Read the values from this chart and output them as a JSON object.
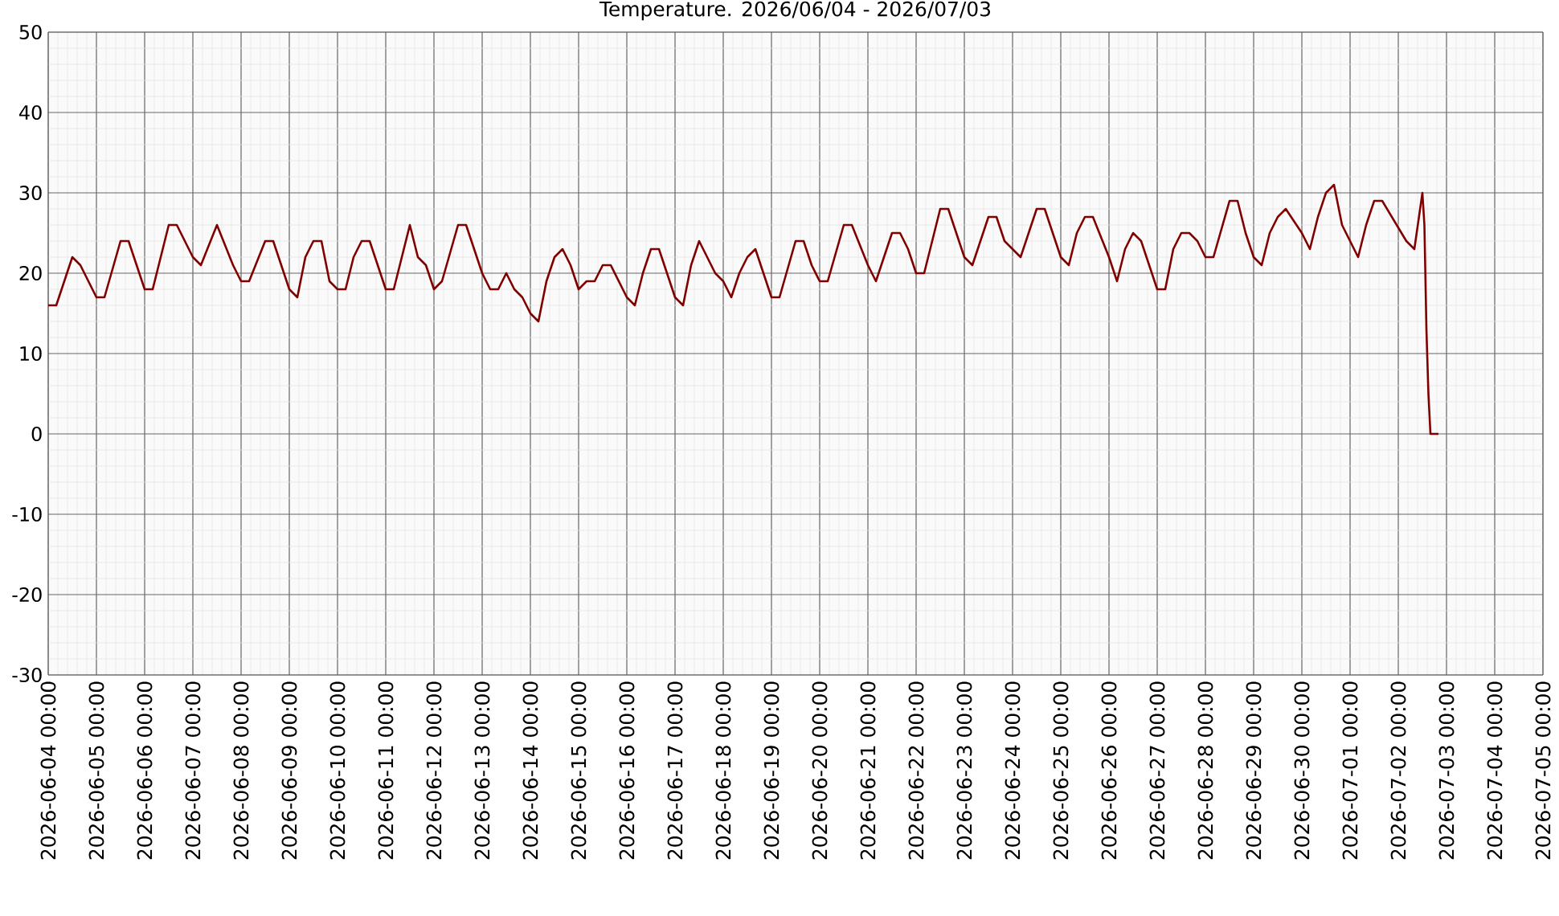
{
  "chart_data": {
    "type": "line",
    "title": "Temperature. 2026/06/04 - 2026/07/03",
    "x": [
      "2026-06-04T00:00",
      "2026-06-04T04:00",
      "2026-06-04T12:00",
      "2026-06-04T16:00",
      "2026-06-05T00:00",
      "2026-06-05T04:00",
      "2026-06-05T12:00",
      "2026-06-05T16:00",
      "2026-06-06T00:00",
      "2026-06-06T04:00",
      "2026-06-06T12:00",
      "2026-06-06T16:00",
      "2026-06-07T00:00",
      "2026-06-07T04:00",
      "2026-06-07T12:00",
      "2026-06-07T20:00",
      "2026-06-08T00:00",
      "2026-06-08T04:00",
      "2026-06-08T12:00",
      "2026-06-08T16:00",
      "2026-06-09T00:00",
      "2026-06-09T04:00",
      "2026-06-09T08:00",
      "2026-06-09T12:00",
      "2026-06-09T16:00",
      "2026-06-09T20:00",
      "2026-06-10T00:00",
      "2026-06-10T04:00",
      "2026-06-10T08:00",
      "2026-06-10T12:00",
      "2026-06-10T16:00",
      "2026-06-11T00:00",
      "2026-06-11T04:00",
      "2026-06-11T12:00",
      "2026-06-11T16:00",
      "2026-06-11T20:00",
      "2026-06-12T00:00",
      "2026-06-12T04:00",
      "2026-06-12T12:00",
      "2026-06-12T16:00",
      "2026-06-13T00:00",
      "2026-06-13T04:00",
      "2026-06-13T08:00",
      "2026-06-13T12:00",
      "2026-06-13T16:00",
      "2026-06-13T20:00",
      "2026-06-14T00:00",
      "2026-06-14T04:00",
      "2026-06-14T08:00",
      "2026-06-14T12:00",
      "2026-06-14T16:00",
      "2026-06-14T20:00",
      "2026-06-15T00:00",
      "2026-06-15T04:00",
      "2026-06-15T08:00",
      "2026-06-15T12:00",
      "2026-06-15T16:00",
      "2026-06-16T00:00",
      "2026-06-16T04:00",
      "2026-06-16T08:00",
      "2026-06-16T12:00",
      "2026-06-16T16:00",
      "2026-06-17T00:00",
      "2026-06-17T04:00",
      "2026-06-17T08:00",
      "2026-06-17T12:00",
      "2026-06-17T20:00",
      "2026-06-18T00:00",
      "2026-06-18T04:00",
      "2026-06-18T08:00",
      "2026-06-18T12:00",
      "2026-06-18T16:00",
      "2026-06-18T20:00",
      "2026-06-19T00:00",
      "2026-06-19T04:00",
      "2026-06-19T12:00",
      "2026-06-19T16:00",
      "2026-06-19T20:00",
      "2026-06-20T00:00",
      "2026-06-20T04:00",
      "2026-06-20T12:00",
      "2026-06-20T16:00",
      "2026-06-21T00:00",
      "2026-06-21T04:00",
      "2026-06-21T12:00",
      "2026-06-21T16:00",
      "2026-06-21T20:00",
      "2026-06-22T00:00",
      "2026-06-22T04:00",
      "2026-06-22T12:00",
      "2026-06-22T16:00",
      "2026-06-23T00:00",
      "2026-06-23T04:00",
      "2026-06-23T12:00",
      "2026-06-23T16:00",
      "2026-06-23T20:00",
      "2026-06-24T04:00",
      "2026-06-24T12:00",
      "2026-06-24T16:00",
      "2026-06-25T00:00",
      "2026-06-25T04:00",
      "2026-06-25T08:00",
      "2026-06-25T12:00",
      "2026-06-25T16:00",
      "2026-06-26T00:00",
      "2026-06-26T04:00",
      "2026-06-26T08:00",
      "2026-06-26T12:00",
      "2026-06-26T16:00",
      "2026-06-26T20:00",
      "2026-06-27T00:00",
      "2026-06-27T04:00",
      "2026-06-27T08:00",
      "2026-06-27T12:00",
      "2026-06-27T16:00",
      "2026-06-27T20:00",
      "2026-06-28T00:00",
      "2026-06-28T04:00",
      "2026-06-28T12:00",
      "2026-06-28T16:00",
      "2026-06-28T20:00",
      "2026-06-29T00:00",
      "2026-06-29T04:00",
      "2026-06-29T08:00",
      "2026-06-29T12:00",
      "2026-06-29T16:00",
      "2026-06-30T00:00",
      "2026-06-30T04:00",
      "2026-06-30T08:00",
      "2026-06-30T12:00",
      "2026-06-30T16:00",
      "2026-06-30T20:00",
      "2026-07-01T04:00",
      "2026-07-01T08:00",
      "2026-07-01T12:00",
      "2026-07-01T16:00",
      "2026-07-02T04:00",
      "2026-07-02T08:00",
      "2026-07-02T12:00",
      "2026-07-02T13:00",
      "2026-07-02T14:00",
      "2026-07-02T15:00",
      "2026-07-02T16:00",
      "2026-07-02T20:00"
    ],
    "values": [
      16,
      16,
      22,
      21,
      17,
      17,
      24,
      24,
      18,
      18,
      26,
      26,
      22,
      21,
      26,
      21,
      19,
      19,
      24,
      24,
      18,
      17,
      22,
      24,
      24,
      19,
      18,
      18,
      22,
      24,
      24,
      18,
      18,
      26,
      22,
      21,
      18,
      19,
      26,
      26,
      20,
      18,
      18,
      20,
      18,
      17,
      15,
      14,
      19,
      22,
      23,
      21,
      18,
      19,
      19,
      21,
      21,
      17,
      16,
      20,
      23,
      23,
      17,
      16,
      21,
      24,
      20,
      19,
      17,
      20,
      22,
      23,
      20,
      17,
      17,
      24,
      24,
      21,
      19,
      19,
      26,
      26,
      21,
      19,
      25,
      25,
      23,
      20,
      20,
      28,
      28,
      22,
      21,
      27,
      27,
      24,
      22,
      28,
      28,
      22,
      21,
      25,
      27,
      27,
      22,
      19,
      23,
      25,
      24,
      21,
      18,
      18,
      23,
      25,
      25,
      24,
      22,
      22,
      29,
      29,
      25,
      22,
      21,
      25,
      27,
      28,
      25,
      23,
      27,
      30,
      31,
      26,
      22,
      26,
      29,
      29,
      24,
      23,
      30,
      26,
      13,
      5,
      0,
      0
    ],
    "color": "#800000",
    "xlim": [
      "2026-06-04T00:00",
      "2026-07-05T00:00"
    ],
    "xticks": [
      {
        "value": "2026-06-04",
        "label": "2026-06-04 00:00"
      },
      {
        "value": "2026-06-05",
        "label": "2026-06-05 00:00"
      },
      {
        "value": "2026-06-06",
        "label": "2026-06-06 00:00"
      },
      {
        "value": "2026-06-07",
        "label": "2026-06-07 00:00"
      },
      {
        "value": "2026-06-08",
        "label": "2026-06-08 00:00"
      },
      {
        "value": "2026-06-09",
        "label": "2026-06-09 00:00"
      },
      {
        "value": "2026-06-10",
        "label": "2026-06-10 00:00"
      },
      {
        "value": "2026-06-11",
        "label": "2026-06-11 00:00"
      },
      {
        "value": "2026-06-12",
        "label": "2026-06-12 00:00"
      },
      {
        "value": "2026-06-13",
        "label": "2026-06-13 00:00"
      },
      {
        "value": "2026-06-14",
        "label": "2026-06-14 00:00"
      },
      {
        "value": "2026-06-15",
        "label": "2026-06-15 00:00"
      },
      {
        "value": "2026-06-16",
        "label": "2026-06-16 00:00"
      },
      {
        "value": "2026-06-17",
        "label": "2026-06-17 00:00"
      },
      {
        "value": "2026-06-18",
        "label": "2026-06-18 00:00"
      },
      {
        "value": "2026-06-19",
        "label": "2026-06-19 00:00"
      },
      {
        "value": "2026-06-20",
        "label": "2026-06-20 00:00"
      },
      {
        "value": "2026-06-21",
        "label": "2026-06-21 00:00"
      },
      {
        "value": "2026-06-22",
        "label": "2026-06-22 00:00"
      },
      {
        "value": "2026-06-23",
        "label": "2026-06-23 00:00"
      },
      {
        "value": "2026-06-24",
        "label": "2026-06-24 00:00"
      },
      {
        "value": "2026-06-25",
        "label": "2026-06-25 00:00"
      },
      {
        "value": "2026-06-26",
        "label": "2026-06-26 00:00"
      },
      {
        "value": "2026-06-27",
        "label": "2026-06-27 00:00"
      },
      {
        "value": "2026-06-28",
        "label": "2026-06-28 00:00"
      },
      {
        "value": "2026-06-29",
        "label": "2026-06-29 00:00"
      },
      {
        "value": "2026-06-30",
        "label": "2026-06-30 00:00"
      },
      {
        "value": "2026-07-01",
        "label": "2026-07-01 00:00"
      },
      {
        "value": "2026-07-02",
        "label": "2026-07-02 00:00"
      },
      {
        "value": "2026-07-03",
        "label": "2026-07-03 00:00"
      },
      {
        "value": "2026-07-04",
        "label": "2026-07-04 00:00"
      },
      {
        "value": "2026-07-05",
        "label": "2026-07-05 00:00"
      }
    ],
    "ylim": [
      -30,
      50
    ],
    "yticks": [
      -30,
      -20,
      -10,
      0,
      10,
      20,
      30,
      40,
      50
    ],
    "grid": true,
    "marker": "none",
    "line_style": "solid"
  }
}
